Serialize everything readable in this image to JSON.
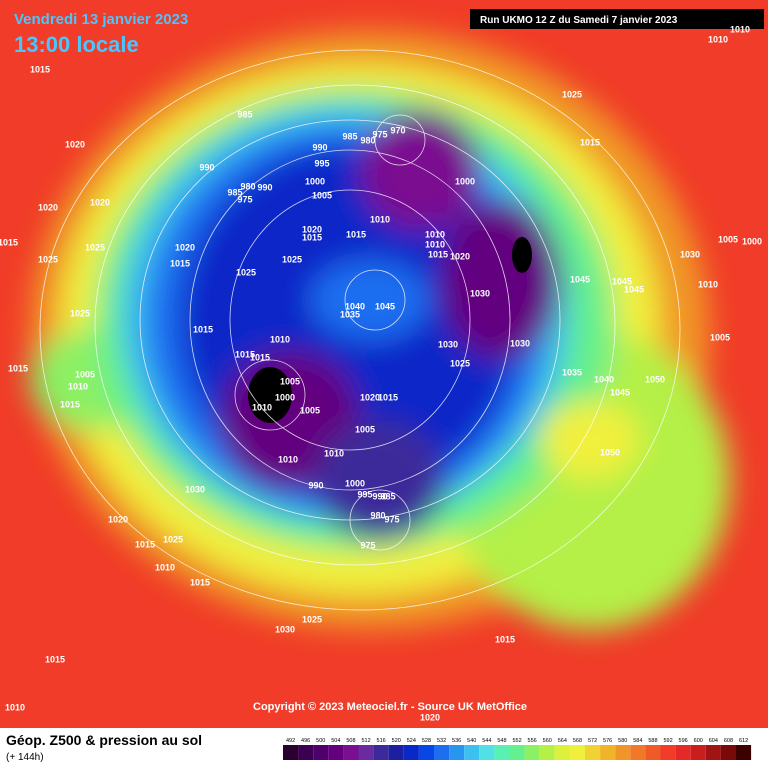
{
  "header": {
    "date": "Vendredi 13 janvier 2023",
    "time": "13:00 locale",
    "run": "Run UKMO 12 Z du Samedi 7 janvier 2023"
  },
  "footer": {
    "copyright": "Copyright © 2023 Meteociel.fr - Source UK MetOffice",
    "title": "Géop. Z500 & pression au sol",
    "lead": "(+ 144h)"
  },
  "legend": {
    "values": [
      492,
      496,
      500,
      504,
      508,
      512,
      516,
      520,
      524,
      528,
      532,
      536,
      540,
      544,
      548,
      552,
      556,
      560,
      564,
      568,
      572,
      576,
      580,
      584,
      588,
      592,
      596,
      600,
      604,
      608,
      612
    ],
    "colors": [
      "#2a0030",
      "#3c0050",
      "#50006a",
      "#640080",
      "#7a1090",
      "#6a2aa0",
      "#3c2a9a",
      "#1e1ea0",
      "#0a28c8",
      "#0a46e6",
      "#1e6ef0",
      "#2896f0",
      "#3cc0f0",
      "#50e0e6",
      "#5af0b4",
      "#64f08c",
      "#8cf064",
      "#b4f046",
      "#dcf03c",
      "#f0f03c",
      "#f0d232",
      "#f0b428",
      "#f09628",
      "#f07828",
      "#f05a28",
      "#f03c28",
      "#e62828",
      "#c81e1e",
      "#a01414",
      "#780a0a",
      "#3c0000"
    ]
  },
  "pressure_labels": [
    1015,
    1020,
    1020,
    1020,
    1015,
    1025,
    1025,
    1020,
    1015,
    1025,
    1015,
    1015,
    1005,
    1010,
    1015,
    1030,
    1020,
    1015,
    1025,
    1010,
    1015,
    1030,
    1025,
    1015,
    1010,
    1020,
    1015,
    985,
    990,
    990,
    980,
    985,
    975,
    990,
    995,
    1000,
    1005,
    1010,
    1015,
    1020,
    1015,
    1025,
    1025,
    985,
    980,
    975,
    970,
    1000,
    1010,
    1010,
    1015,
    1020,
    1040,
    1035,
    1045,
    1030,
    1030,
    1030,
    1025,
    1045,
    1045,
    1045,
    1035,
    1040,
    1045,
    1050,
    1050,
    1030,
    1010,
    1005,
    1005,
    1000,
    1010,
    1010,
    1025,
    1015,
    1010,
    1015,
    1015,
    1005,
    1000,
    1010,
    1005,
    1020,
    1015,
    1005,
    1010,
    1010,
    990,
    1000,
    995,
    990,
    985,
    980,
    975,
    975
  ]
}
